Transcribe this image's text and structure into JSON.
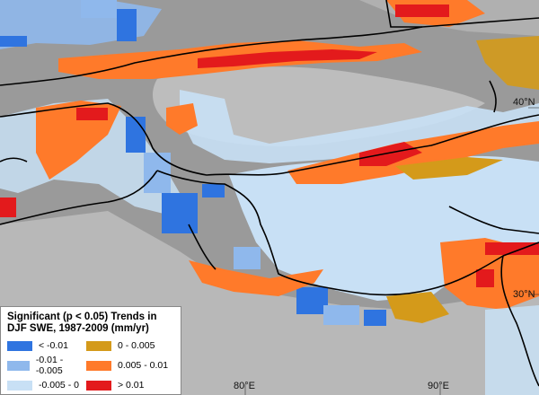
{
  "legend": {
    "title_line1": "Significant (p < 0.05) Trends in",
    "title_line2": "DJF SWE, 1987-2009 (mm/yr)",
    "items": [
      {
        "label": "< -0.01",
        "color": "#2f74e0"
      },
      {
        "label": "0 - 0.005",
        "color": "#d49a1a"
      },
      {
        "label": "-0.01 - -0.005",
        "color": "#8fb8ec"
      },
      {
        "label": "0.005 - 0.01",
        "color": "#ff7a2a"
      },
      {
        "label": "-0.005 - 0",
        "color": "#c8e0f5"
      },
      {
        "label": "> 0.01",
        "color": "#e31a1c"
      }
    ]
  },
  "graticule": {
    "lat_40": "40°N",
    "lat_30": "30°N",
    "lon_80": "80°E",
    "lon_90": "90°E"
  },
  "colors": {
    "terrain": "#9a9a9a",
    "desert": "#bdbdbd",
    "boundary": "#000000"
  }
}
